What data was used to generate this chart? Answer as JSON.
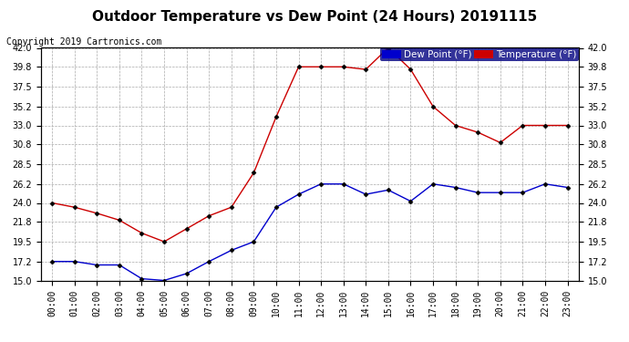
{
  "title": "Outdoor Temperature vs Dew Point (24 Hours) 20191115",
  "copyright": "Copyright 2019 Cartronics.com",
  "hours": [
    "00:00",
    "01:00",
    "02:00",
    "03:00",
    "04:00",
    "05:00",
    "06:00",
    "07:00",
    "08:00",
    "09:00",
    "10:00",
    "11:00",
    "12:00",
    "13:00",
    "14:00",
    "15:00",
    "16:00",
    "17:00",
    "18:00",
    "19:00",
    "20:00",
    "21:00",
    "22:00",
    "23:00"
  ],
  "temperature": [
    24.0,
    23.5,
    22.8,
    22.0,
    20.5,
    19.5,
    21.0,
    22.5,
    23.5,
    27.5,
    34.0,
    39.8,
    39.8,
    39.8,
    39.5,
    42.0,
    39.5,
    35.2,
    33.0,
    32.2,
    31.0,
    33.0,
    33.0,
    33.0
  ],
  "dew_point": [
    17.2,
    17.2,
    16.8,
    16.8,
    15.2,
    15.0,
    15.8,
    17.2,
    18.5,
    19.5,
    23.5,
    25.0,
    26.2,
    26.2,
    25.0,
    25.5,
    24.2,
    26.2,
    25.8,
    25.2,
    25.2,
    25.2,
    26.2,
    25.8
  ],
  "temp_color": "#cc0000",
  "dew_color": "#0000cc",
  "marker": "D",
  "marker_size": 2.5,
  "ylim": [
    15.0,
    42.0
  ],
  "yticks": [
    15.0,
    17.2,
    19.5,
    21.8,
    24.0,
    26.2,
    28.5,
    30.8,
    33.0,
    35.2,
    37.5,
    39.8,
    42.0
  ],
  "legend_dew_bg": "#0000cc",
  "legend_temp_bg": "#cc0000",
  "legend_text_color": "#ffffff",
  "background_color": "#ffffff",
  "plot_background": "#ffffff",
  "grid_color": "#aaaaaa",
  "title_fontsize": 11,
  "copyright_fontsize": 7,
  "legend_fontsize": 7.5,
  "tick_fontsize": 7
}
